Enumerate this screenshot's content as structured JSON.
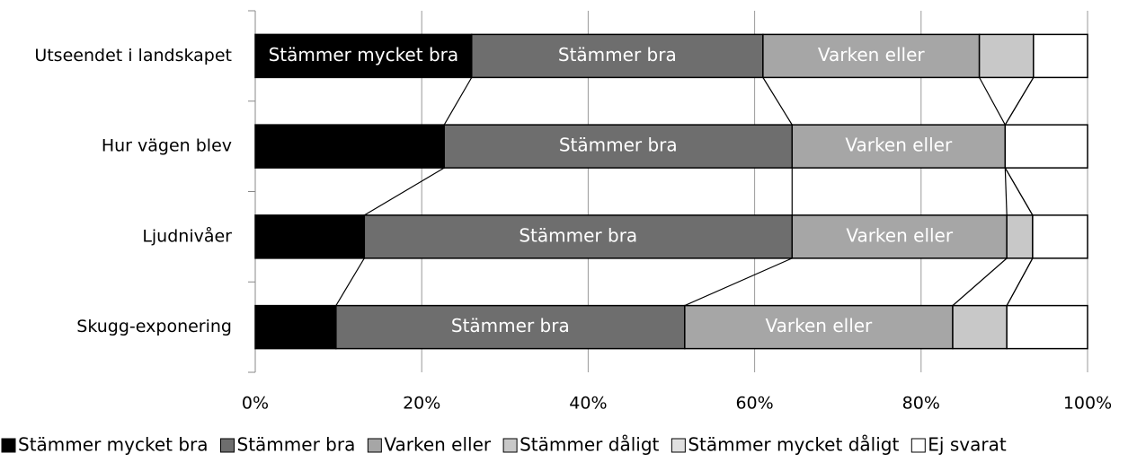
{
  "chart_data": {
    "type": "stacked_bar_horizontal",
    "categories": [
      "Utseendet i landskapet",
      "Hur vägen blev",
      "Ljudnivåer",
      "Skugg-exponering"
    ],
    "series": [
      {
        "name": "Stämmer mycket bra",
        "color": "#000000",
        "values": [
          26,
          22.7,
          13.1,
          9.7
        ],
        "show_label": [
          true,
          false,
          false,
          false
        ]
      },
      {
        "name": "Stämmer bra",
        "color": "#6e6e6e",
        "values": [
          35,
          41.8,
          51.4,
          41.9
        ],
        "show_label": [
          true,
          true,
          true,
          true
        ]
      },
      {
        "name": "Varken eller",
        "color": "#a6a6a6",
        "values": [
          26,
          25.6,
          25.8,
          32.2
        ],
        "show_label": [
          true,
          true,
          true,
          true
        ]
      },
      {
        "name": "Stämmer dåligt",
        "color": "#c8c8c8",
        "values": [
          6.5,
          0,
          3.1,
          6.5
        ],
        "show_label": [
          false,
          false,
          false,
          false
        ]
      },
      {
        "name": "Stämmer mycket dåligt",
        "color": "#e0e0e0",
        "values": [
          0,
          0,
          0,
          0
        ],
        "show_label": [
          false,
          false,
          false,
          false
        ]
      },
      {
        "name": "Ej svarat",
        "color": "#ffffff",
        "values": [
          6.5,
          9.9,
          6.6,
          9.7
        ],
        "show_label": [
          false,
          false,
          false,
          false
        ]
      }
    ],
    "xlim": [
      0,
      100
    ],
    "xticks": [
      {
        "value": 0,
        "label": "0%"
      },
      {
        "value": 20,
        "label": "20%"
      },
      {
        "value": 40,
        "label": "40%"
      },
      {
        "value": 60,
        "label": "60%"
      },
      {
        "value": 80,
        "label": "80%"
      },
      {
        "value": 100,
        "label": "100%"
      }
    ],
    "grid": true,
    "series_lines": true,
    "legend": "bottom"
  }
}
